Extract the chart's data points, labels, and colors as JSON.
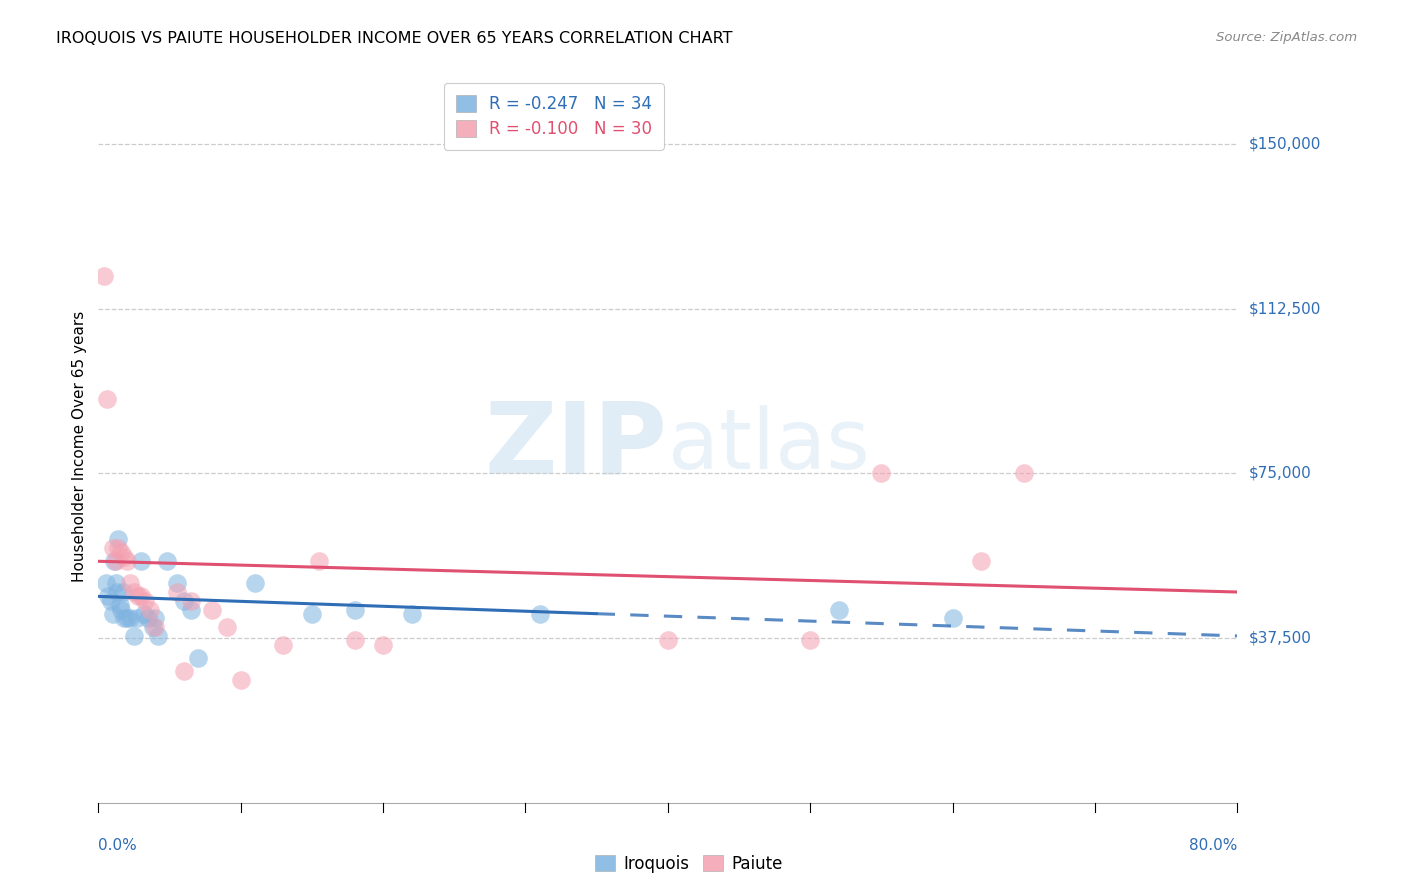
{
  "title": "IROQUOIS VS PAIUTE HOUSEHOLDER INCOME OVER 65 YEARS CORRELATION CHART",
  "source_text": "Source: ZipAtlas.com",
  "ylabel": "Householder Income Over 65 years",
  "y_ticks": [
    0,
    37500,
    75000,
    112500,
    150000
  ],
  "y_tick_labels": [
    "",
    "$37,500",
    "$75,000",
    "$112,500",
    "$150,000"
  ],
  "x_min": 0.0,
  "x_max": 0.8,
  "y_min": 0,
  "y_max": 162500,
  "legend_iroquois": "R = -0.247   N = 34",
  "legend_paiute": "R = -0.100   N = 30",
  "iroquois_color": "#7eb3e0",
  "paiute_color": "#f4a0b0",
  "iroquois_line_color": "#2f6db5",
  "paiute_line_color": "#e05070",
  "background_color": "#ffffff",
  "grid_color": "#cccccc",
  "watermark_color": "#c8dff0",
  "iroquois_x": [
    0.005,
    0.007,
    0.009,
    0.01,
    0.011,
    0.012,
    0.013,
    0.014,
    0.015,
    0.016,
    0.017,
    0.018,
    0.02,
    0.022,
    0.025,
    0.027,
    0.03,
    0.032,
    0.035,
    0.038,
    0.04,
    0.042,
    0.048,
    0.055,
    0.06,
    0.065,
    0.11,
    0.15,
    0.18,
    0.22,
    0.31,
    0.52,
    0.6,
    0.07
  ],
  "iroquois_y": [
    50000,
    47000,
    46000,
    43000,
    55000,
    50000,
    48000,
    60000,
    45000,
    44000,
    48000,
    42000,
    42000,
    42000,
    38000,
    42000,
    55000,
    43000,
    42000,
    40000,
    42000,
    38000,
    55000,
    50000,
    46000,
    44000,
    50000,
    43000,
    44000,
    43000,
    43000,
    44000,
    42000,
    33000
  ],
  "paiute_x": [
    0.004,
    0.006,
    0.01,
    0.012,
    0.014,
    0.016,
    0.018,
    0.02,
    0.022,
    0.025,
    0.028,
    0.03,
    0.033,
    0.036,
    0.04,
    0.055,
    0.06,
    0.065,
    0.08,
    0.09,
    0.1,
    0.13,
    0.155,
    0.18,
    0.2,
    0.4,
    0.5,
    0.55,
    0.62,
    0.65
  ],
  "paiute_y": [
    120000,
    92000,
    58000,
    55000,
    58000,
    57000,
    56000,
    55000,
    50000,
    48000,
    47000,
    47000,
    46000,
    44000,
    40000,
    48000,
    30000,
    46000,
    44000,
    40000,
    28000,
    36000,
    55000,
    37000,
    36000,
    37000,
    37000,
    75000,
    55000,
    75000
  ]
}
